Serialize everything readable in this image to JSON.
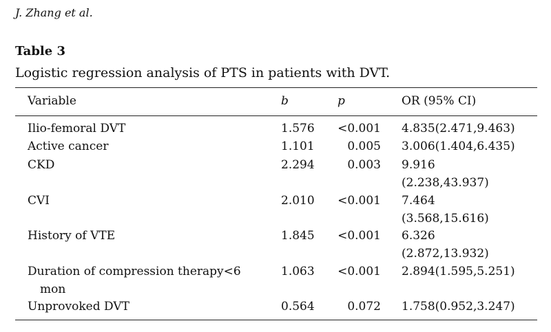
{
  "header": {
    "author": "J. Zhang et al."
  },
  "table": {
    "number": "Table 3",
    "caption": "Logistic regression analysis of PTS in patients with DVT.",
    "columns": [
      "Variable",
      "b",
      "p",
      "OR (95% CI)"
    ],
    "rows": [
      {
        "variable": "Ilio-femoral DVT",
        "variable_cont": "",
        "b": "1.576",
        "p": "<0.001",
        "or_line1": "4.835(2.471,9.463)",
        "or_line2": ""
      },
      {
        "variable": "Active cancer",
        "variable_cont": "",
        "b": "1.101",
        "p": "0.005",
        "or_line1": "3.006(1.404,6.435)",
        "or_line2": ""
      },
      {
        "variable": "CKD",
        "variable_cont": "",
        "b": "2.294",
        "p": "0.003",
        "or_line1": "9.916",
        "or_line2": "(2.238,43.937)"
      },
      {
        "variable": "CVI",
        "variable_cont": "",
        "b": "2.010",
        "p": "<0.001",
        "or_line1": "7.464",
        "or_line2": "(3.568,15.616)"
      },
      {
        "variable": "History of VTE",
        "variable_cont": "",
        "b": "1.845",
        "p": "<0.001",
        "or_line1": "6.326",
        "or_line2": "(2.872,13.932)"
      },
      {
        "variable": "Duration of compression therapy<6",
        "variable_cont": "mon",
        "b": "1.063",
        "p": "<0.001",
        "or_line1": "2.894(1.595,5.251)",
        "or_line2": ""
      },
      {
        "variable": "Unprovoked DVT",
        "variable_cont": "",
        "b": "0.564",
        "p": "0.072",
        "or_line1": "1.758(0.952,3.247)",
        "or_line2": ""
      }
    ]
  }
}
